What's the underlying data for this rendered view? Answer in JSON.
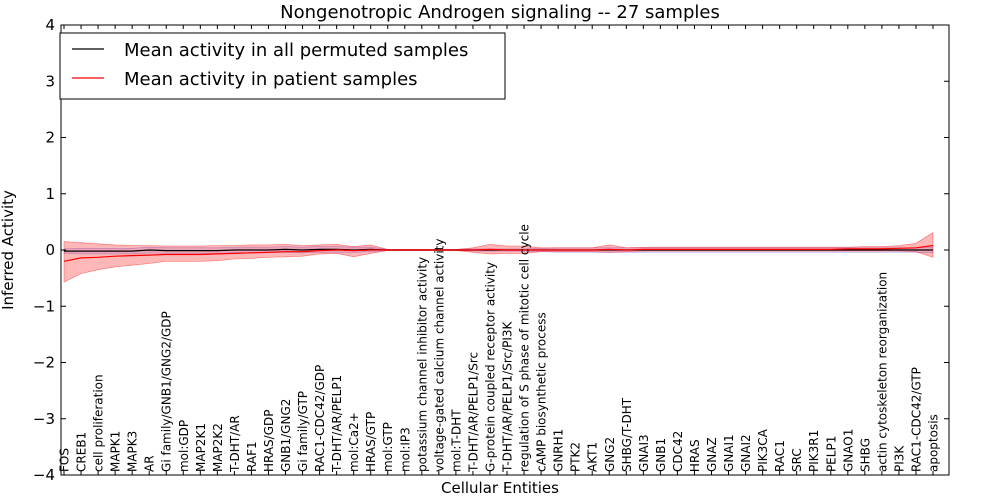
{
  "chart_data": {
    "type": "line",
    "title": "Nongenotropic Androgen signaling -- 27 samples",
    "xlabel": "Cellular Entities",
    "ylabel": "Inferred Activity",
    "ylim": [
      -4,
      4
    ],
    "yticks": [
      -4,
      -3,
      -2,
      -1,
      0,
      1,
      2,
      3,
      4
    ],
    "grid": false,
    "legend_position": "top-left",
    "categories": [
      "FOS",
      "CREB1",
      "cell proliferation",
      "MAPK1",
      "MAPK3",
      "AR",
      "Gi family/GNB1/GNG2/GDP",
      "mol:GDP",
      "MAP2K1",
      "MAP2K2",
      "T-DHT/AR",
      "RAF1",
      "HRAS/GDP",
      "GNB1/GNG2",
      "Gi family/GTP",
      "RAC1-CDC42/GDP",
      "T-DHT/AR/PELP1",
      "mol:Ca2+",
      "HRAS/GTP",
      "mol:GTP",
      "mol:IP3",
      "potassium channel inhibitor activity",
      "voltage-gated calcium channel activity",
      "mol:T-DHT",
      "T-DHT/AR/PELP1/Src",
      "G-protein coupled receptor activity",
      "T-DHT/AR/PELP1/Src/PI3K",
      "regulation of S phase of mitotic cell cycle",
      "cAMP biosynthetic process",
      "GNRH1",
      "PTK2",
      "AKT1",
      "GNG2",
      "SHBG/T-DHT",
      "GNAI3",
      "GNB1",
      "CDC42",
      "HRAS",
      "GNAZ",
      "GNAI1",
      "GNAI2",
      "PIK3CA",
      "RAC1",
      "SRC",
      "PIK3R1",
      "PELP1",
      "GNAO1",
      "SHBG",
      "actin cytoskeleton reorganization",
      "PI3K",
      "RAC1-CDC42/GTP",
      "apoptosis"
    ],
    "series": [
      {
        "name": "Mean activity in all permuted samples",
        "color": "#000000",
        "values": [
          -0.02,
          -0.02,
          -0.02,
          -0.02,
          -0.02,
          0.0,
          -0.01,
          -0.01,
          -0.01,
          -0.01,
          0.0,
          0.0,
          0.0,
          0.01,
          0.0,
          0.01,
          0.01,
          0.0,
          0.01,
          0.0,
          0.0,
          0.0,
          0.0,
          0.0,
          0.0,
          0.0,
          0.0,
          0.0,
          0.0,
          0.0,
          0.0,
          0.0,
          0.0,
          0.0,
          0.0,
          0.0,
          0.0,
          0.0,
          0.0,
          0.0,
          0.0,
          0.0,
          0.0,
          0.0,
          0.0,
          0.0,
          0.0,
          0.0,
          0.0,
          0.0,
          0.0,
          0.0
        ],
        "band_low": [
          -0.06,
          -0.07,
          -0.07,
          -0.07,
          -0.07,
          -0.05,
          -0.06,
          -0.06,
          -0.06,
          -0.06,
          -0.05,
          -0.05,
          -0.05,
          -0.04,
          -0.05,
          -0.04,
          -0.04,
          -0.04,
          -0.03,
          -0.01,
          -0.01,
          -0.01,
          -0.01,
          -0.01,
          -0.02,
          -0.02,
          -0.02,
          -0.02,
          -0.03,
          -0.04,
          -0.04,
          -0.04,
          -0.04,
          -0.04,
          -0.04,
          -0.04,
          -0.04,
          -0.04,
          -0.04,
          -0.04,
          -0.04,
          -0.04,
          -0.04,
          -0.04,
          -0.04,
          -0.04,
          -0.04,
          -0.04,
          -0.04,
          -0.04,
          -0.04,
          -0.05
        ],
        "band_high": [
          0.02,
          0.03,
          0.03,
          0.03,
          0.03,
          0.05,
          0.04,
          0.04,
          0.04,
          0.04,
          0.05,
          0.05,
          0.05,
          0.06,
          0.05,
          0.06,
          0.06,
          0.05,
          0.05,
          0.01,
          0.01,
          0.01,
          0.01,
          0.01,
          0.02,
          0.02,
          0.02,
          0.02,
          0.03,
          0.04,
          0.04,
          0.04,
          0.04,
          0.04,
          0.04,
          0.04,
          0.04,
          0.04,
          0.04,
          0.04,
          0.04,
          0.04,
          0.04,
          0.04,
          0.04,
          0.04,
          0.04,
          0.04,
          0.04,
          0.04,
          0.04,
          0.05
        ]
      },
      {
        "name": "Mean activity in patient samples",
        "color": "#ff0000",
        "values": [
          -0.2,
          -0.14,
          -0.13,
          -0.11,
          -0.1,
          -0.09,
          -0.08,
          -0.08,
          -0.08,
          -0.07,
          -0.06,
          -0.05,
          -0.04,
          -0.03,
          -0.03,
          -0.01,
          0.0,
          -0.01,
          0.0,
          0.0,
          0.0,
          0.0,
          0.0,
          0.0,
          0.0,
          0.01,
          0.0,
          0.0,
          0.0,
          0.0,
          0.0,
          0.0,
          0.01,
          0.0,
          0.01,
          0.01,
          0.01,
          0.01,
          0.01,
          0.01,
          0.01,
          0.01,
          0.01,
          0.01,
          0.01,
          0.01,
          0.02,
          0.02,
          0.02,
          0.03,
          0.04,
          0.08
        ],
        "band_low": [
          -0.57,
          -0.42,
          -0.35,
          -0.3,
          -0.27,
          -0.24,
          -0.2,
          -0.2,
          -0.2,
          -0.19,
          -0.16,
          -0.15,
          -0.13,
          -0.12,
          -0.11,
          -0.07,
          -0.06,
          -0.12,
          -0.06,
          -0.01,
          -0.01,
          -0.01,
          -0.01,
          -0.01,
          -0.04,
          -0.07,
          -0.06,
          -0.06,
          -0.03,
          -0.03,
          -0.03,
          -0.03,
          -0.04,
          -0.03,
          -0.02,
          -0.02,
          -0.02,
          -0.02,
          -0.02,
          -0.02,
          -0.02,
          -0.02,
          -0.02,
          -0.02,
          -0.02,
          -0.02,
          -0.02,
          -0.02,
          -0.02,
          -0.02,
          -0.03,
          -0.13
        ],
        "band_high": [
          0.15,
          0.13,
          0.11,
          0.09,
          0.08,
          0.08,
          0.07,
          0.07,
          0.07,
          0.08,
          0.08,
          0.09,
          0.09,
          0.1,
          0.08,
          0.09,
          0.1,
          0.06,
          0.09,
          0.01,
          0.01,
          0.01,
          0.01,
          0.01,
          0.04,
          0.1,
          0.07,
          0.07,
          0.04,
          0.04,
          0.04,
          0.04,
          0.09,
          0.04,
          0.05,
          0.05,
          0.05,
          0.05,
          0.05,
          0.05,
          0.05,
          0.05,
          0.05,
          0.05,
          0.05,
          0.05,
          0.05,
          0.06,
          0.06,
          0.08,
          0.12,
          0.31
        ]
      }
    ]
  }
}
